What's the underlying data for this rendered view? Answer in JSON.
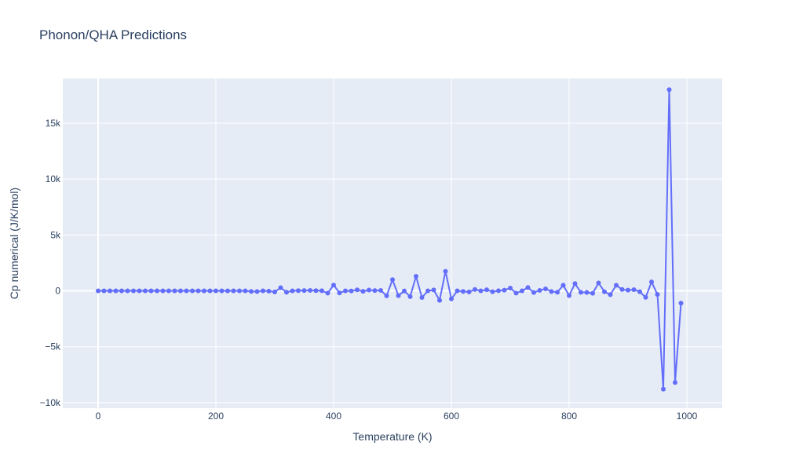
{
  "chart_data": {
    "type": "line",
    "title": "Phonon/QHA Predictions",
    "xlabel": "Temperature (K)",
    "ylabel": "Cp numerical (J/K/mol)",
    "xlim": [
      -60,
      1060
    ],
    "ylim": [
      -10500,
      19000
    ],
    "grid": true,
    "legend": "none",
    "x_ticks": [
      0,
      200,
      400,
      600,
      800,
      1000
    ],
    "x_tick_labels": [
      "0",
      "200",
      "400",
      "600",
      "800",
      "1000"
    ],
    "y_ticks": [
      -10000,
      -5000,
      0,
      5000,
      10000,
      15000
    ],
    "y_tick_labels": [
      "−10k",
      "−5k",
      "0",
      "5k",
      "10k",
      "15k"
    ],
    "colors": {
      "series": "#636efa",
      "plot_bg": "#e5ecf6",
      "grid": "#ffffff",
      "text": "#2a3f5f"
    },
    "series": [
      {
        "x": [
          0,
          10,
          20,
          30,
          40,
          50,
          60,
          70,
          80,
          90,
          100,
          110,
          120,
          130,
          140,
          150,
          160,
          170,
          180,
          190,
          200,
          210,
          220,
          230,
          240,
          250,
          260,
          270,
          280,
          290,
          300,
          310,
          320,
          330,
          340,
          350,
          360,
          370,
          380,
          390,
          400,
          410,
          420,
          430,
          440,
          450,
          460,
          470,
          480,
          490,
          500,
          510,
          520,
          530,
          540,
          550,
          560,
          570,
          580,
          590,
          600,
          610,
          620,
          630,
          640,
          650,
          660,
          670,
          680,
          690,
          700,
          710,
          720,
          730,
          740,
          750,
          760,
          770,
          780,
          790,
          800,
          810,
          820,
          830,
          840,
          850,
          860,
          870,
          880,
          890,
          900,
          910,
          920,
          930,
          940,
          950,
          960,
          970,
          980,
          990
        ],
        "y": [
          0,
          0,
          0,
          0,
          0,
          0,
          0,
          0,
          0,
          0,
          0,
          0,
          0,
          0,
          0,
          0,
          0,
          0,
          0,
          0,
          0,
          0,
          0,
          0,
          0,
          0,
          -50,
          -60,
          0,
          -30,
          -100,
          280,
          -120,
          0,
          20,
          30,
          40,
          20,
          10,
          -200,
          520,
          -180,
          0,
          -10,
          90,
          -40,
          70,
          30,
          40,
          -450,
          1000,
          -430,
          -10,
          -520,
          1300,
          -600,
          0,
          80,
          -850,
          1750,
          -720,
          0,
          -50,
          -100,
          120,
          0,
          100,
          -80,
          10,
          60,
          250,
          -200,
          0,
          300,
          -150,
          40,
          180,
          -60,
          -120,
          500,
          -420,
          650,
          -130,
          -140,
          -220,
          700,
          -80,
          -340,
          500,
          120,
          60,
          110,
          -80,
          -580,
          800,
          -320,
          -8800,
          18000,
          -8200,
          -1100
        ]
      }
    ]
  }
}
